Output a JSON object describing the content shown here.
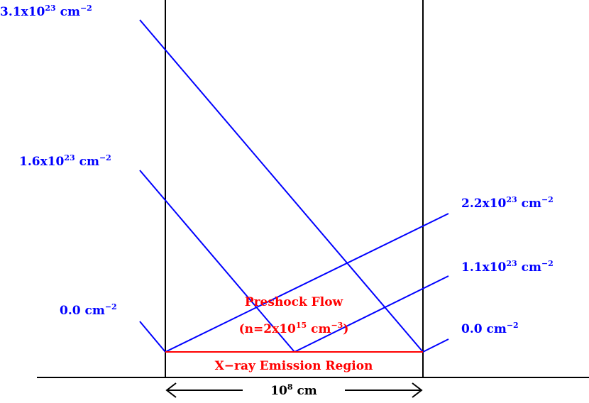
{
  "colors": {
    "ray": "#0000ff",
    "region": "#ff0000",
    "frame": "#000000"
  },
  "left_labels": [
    {
      "id": "top",
      "base": "3.1x10",
      "exp": "23",
      "unit": " cm",
      "unit_exp": "−2"
    },
    {
      "id": "middle",
      "base": "1.6x10",
      "exp": "23",
      "unit": " cm",
      "unit_exp": "−2"
    },
    {
      "id": "bottom",
      "base": "0.0",
      "exp": "",
      "unit": " cm",
      "unit_exp": "−2"
    }
  ],
  "right_labels": [
    {
      "id": "top",
      "base": "2.2x10",
      "exp": "23",
      "unit": " cm",
      "unit_exp": "−2"
    },
    {
      "id": "middle",
      "base": "1.1x10",
      "exp": "23",
      "unit": " cm",
      "unit_exp": "−2"
    },
    {
      "id": "bottom",
      "base": "0.0",
      "exp": "",
      "unit": " cm",
      "unit_exp": "−2"
    }
  ],
  "preshock": {
    "title": "Preshock Flow",
    "density_prefix": "(n=2x10",
    "density_exp": "15",
    "density_unit": " cm",
    "density_unit_exp": "−3",
    "density_suffix": ")"
  },
  "emission_region": "X−ray Emission Region",
  "scale": {
    "base": "10",
    "exp": "8",
    "unit": " cm"
  }
}
